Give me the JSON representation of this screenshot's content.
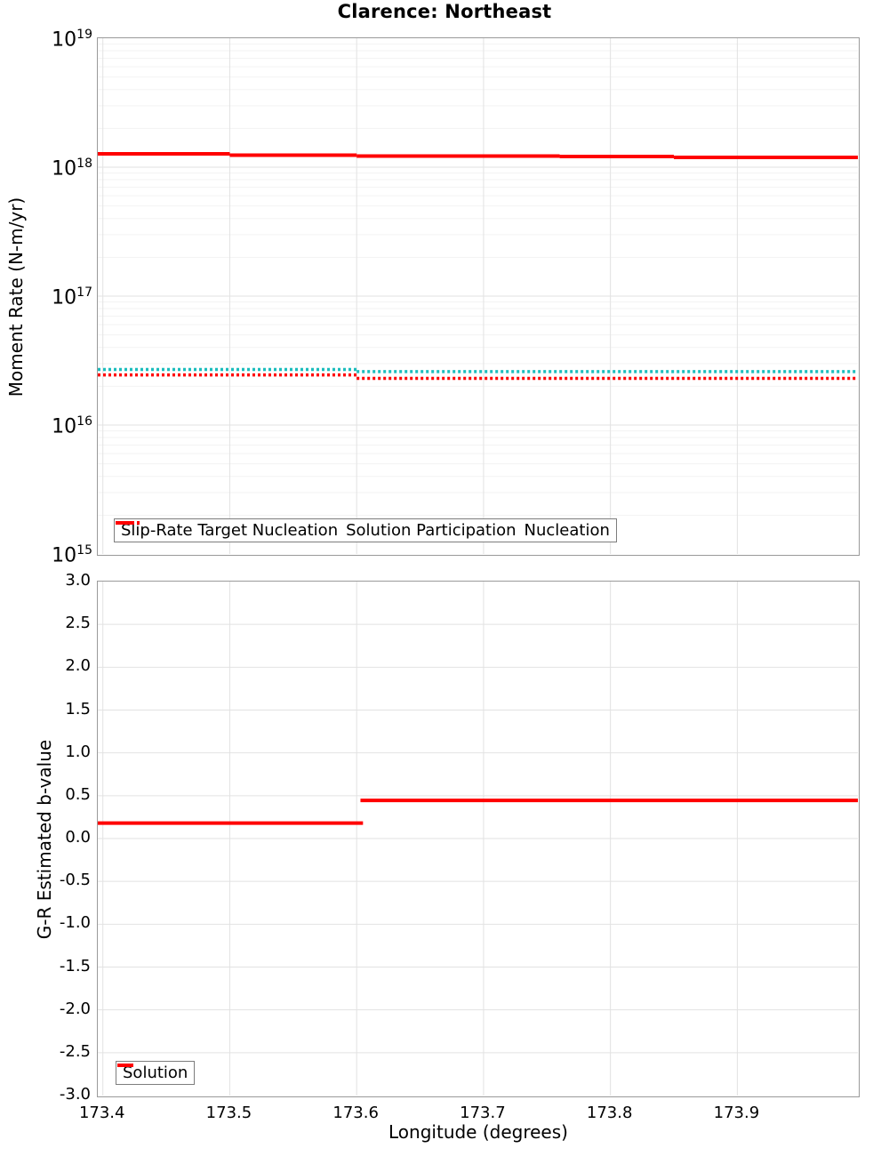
{
  "title": "Clarence: Northeast",
  "colors": {
    "solution_red": "#ff0000",
    "slip_rate_teal": "#1cbdbd",
    "grid_major": "#e2e2e2",
    "grid_minor": "#f3f3f3",
    "spine_gray": "#9a9a9a",
    "legend_border": "#7d7d7d",
    "text": "#000000"
  },
  "chart_data": [
    {
      "type": "line",
      "title": "Clarence: Northeast",
      "ylabel": "Moment Rate (N-m/yr)",
      "xlabel": "",
      "y_scale": "log",
      "ylim_exponents": [
        15,
        19
      ],
      "ytick_labels": [
        {
          "base": "10",
          "exp": "19"
        },
        {
          "base": "10",
          "exp": "18"
        },
        {
          "base": "10",
          "exp": "17"
        },
        {
          "base": "10",
          "exp": "16"
        },
        {
          "base": "10",
          "exp": "15"
        }
      ],
      "ytick_exponents": [
        19,
        18,
        17,
        16,
        15
      ],
      "xlim": [
        173.396,
        173.995
      ],
      "xticks": [
        173.4,
        173.5,
        173.6,
        173.7,
        173.8,
        173.9
      ],
      "show_xtick_labels": false,
      "grid": {
        "major": true,
        "minor": true
      },
      "legend": {
        "location": "lower left inside",
        "items": [
          {
            "label": "Slip-Rate Target Nucleation",
            "style": "dotted",
            "color": "#1cbdbd"
          },
          {
            "label": "Solution Participation",
            "style": "solid",
            "color": "#ff0000"
          },
          {
            "label": "Nucleation",
            "style": "dotted",
            "color": "#ff0000"
          }
        ]
      },
      "series": [
        {
          "name": "Slip-Rate Target Nucleation",
          "style": "dotted",
          "color": "#1cbdbd",
          "width": 3.5,
          "segments": [
            {
              "x": [
                173.396,
                173.6
              ],
              "y": 2.7e+16
            },
            {
              "x": [
                173.6,
                173.995
              ],
              "y": 2.6e+16
            }
          ]
        },
        {
          "name": "Solution Participation",
          "style": "solid",
          "color": "#ff0000",
          "width": 4,
          "segments": [
            {
              "x": [
                173.396,
                173.5
              ],
              "y": 1.27e+18
            },
            {
              "x": [
                173.5,
                173.6
              ],
              "y": 1.24e+18
            },
            {
              "x": [
                173.6,
                173.76
              ],
              "y": 1.22e+18
            },
            {
              "x": [
                173.76,
                173.85
              ],
              "y": 1.21e+18
            },
            {
              "x": [
                173.85,
                173.995
              ],
              "y": 1.19e+18
            }
          ]
        },
        {
          "name": "Nucleation",
          "style": "dotted",
          "color": "#ff0000",
          "width": 3.5,
          "segments": [
            {
              "x": [
                173.396,
                173.6
              ],
              "y": 2.45e+16
            },
            {
              "x": [
                173.6,
                173.995
              ],
              "y": 2.3e+16
            }
          ]
        }
      ]
    },
    {
      "type": "line",
      "title": "",
      "ylabel": "G-R Estimated b-value",
      "xlabel": "Longitude (degrees)",
      "y_scale": "linear",
      "ylim": [
        -3.0,
        3.0
      ],
      "ytick_step": 0.5,
      "ytick_labels": [
        "3.0",
        "2.5",
        "2.0",
        "1.5",
        "1.0",
        "0.5",
        "0.0",
        "-0.5",
        "-1.0",
        "-1.5",
        "-2.0",
        "-2.5",
        "-3.0"
      ],
      "ytick_values": [
        3.0,
        2.5,
        2.0,
        1.5,
        1.0,
        0.5,
        0.0,
        -0.5,
        -1.0,
        -1.5,
        -2.0,
        -2.5,
        -3.0
      ],
      "xlim": [
        173.396,
        173.995
      ],
      "xticks": [
        173.4,
        173.5,
        173.6,
        173.7,
        173.8,
        173.9
      ],
      "xtick_labels": [
        "173.4",
        "173.5",
        "173.6",
        "173.7",
        "173.8",
        "173.9"
      ],
      "show_xtick_labels": true,
      "grid": {
        "major": true,
        "minor": false
      },
      "legend": {
        "location": "lower left inside",
        "items": [
          {
            "label": "Solution",
            "style": "solid",
            "color": "#ff0000"
          }
        ]
      },
      "series": [
        {
          "name": "Solution",
          "style": "solid",
          "color": "#ff0000",
          "width": 4,
          "segments": [
            {
              "x": [
                173.396,
                173.605
              ],
              "y": 0.18
            },
            {
              "x": [
                173.603,
                173.995
              ],
              "y": 0.445
            }
          ]
        }
      ]
    }
  ]
}
